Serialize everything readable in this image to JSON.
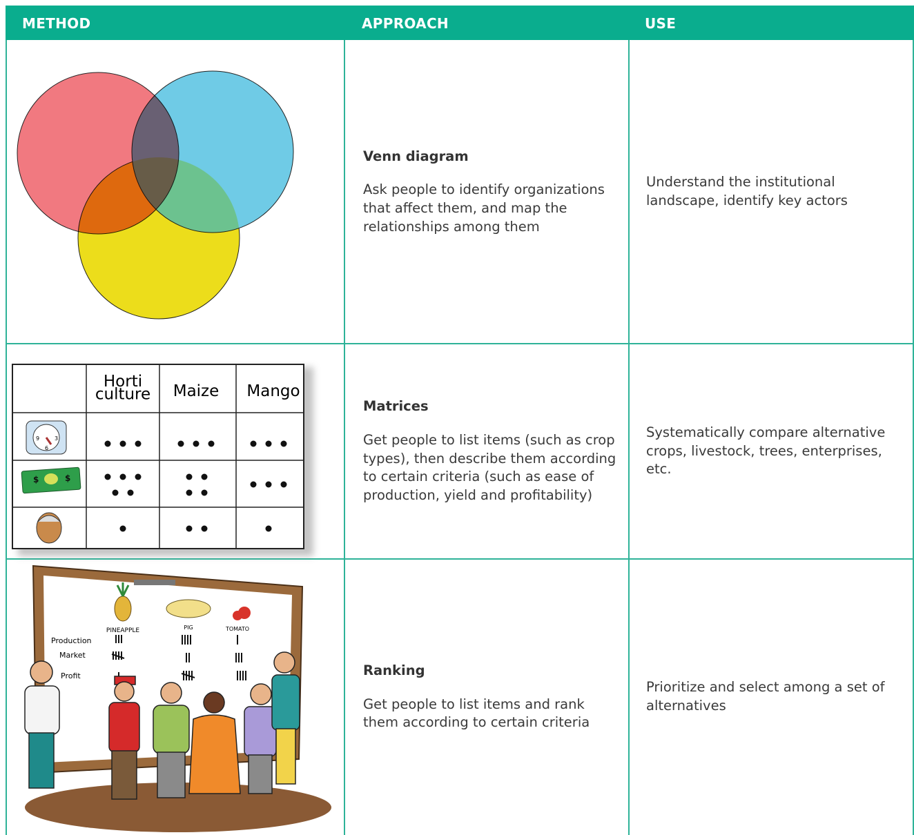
{
  "header": {
    "columns": [
      "METHOD",
      "APPROACH",
      "USE"
    ]
  },
  "table": {
    "rows": [
      {
        "figure": {},
        "approach_title": "Venn diagram",
        "approach_text": "Ask people to identify organizations that affect them, and map the relationships among them",
        "use": "Understand the institutional landscape, identify key actors"
      },
      {
        "figure": {
          "columns": [
            "Horti culture",
            "Maize",
            "Mango"
          ],
          "clock_labels": [
            "9",
            "3",
            "6"
          ],
          "money_labels": [
            "$",
            "$"
          ]
        },
        "approach_title": "Matrices",
        "approach_text": "Get people to list items (such as crop types), then describe them according to certain criteria (such as ease of production, yield and profitability)",
        "use": "Systematically compare alternative crops, livestock, trees, enterprises, etc."
      },
      {
        "figure": {
          "items": [
            "PINEAPPLE",
            "PIG",
            "TOMATO"
          ],
          "criteria": [
            "Production",
            "Market",
            "Profit"
          ]
        },
        "approach_title": "Ranking",
        "approach_text": "Get people to list items and rank them according to certain criteria",
        "use": "Prioritize and select among a set of alternatives"
      }
    ]
  }
}
